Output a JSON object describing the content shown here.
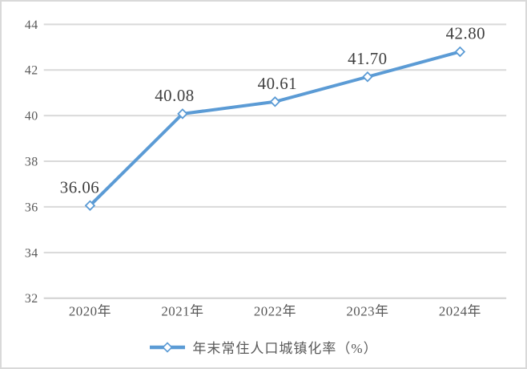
{
  "chart_data": {
    "type": "line",
    "title": "",
    "xlabel": "",
    "ylabel": "",
    "categories": [
      "2020年",
      "2021年",
      "2022年",
      "2023年",
      "2024年"
    ],
    "series": [
      {
        "name": "年末常住人口城镇化率（%）",
        "values": [
          36.06,
          40.08,
          40.61,
          41.7,
          42.8
        ],
        "data_labels": [
          "36.06",
          "40.08",
          "40.61",
          "41.70",
          "42.80"
        ]
      }
    ],
    "ylim": [
      32,
      44
    ],
    "ytick_interval": 2,
    "ytick_labels": [
      "32",
      "34",
      "36",
      "38",
      "40",
      "42",
      "44"
    ],
    "grid": "horizontal",
    "legend_position": "bottom",
    "marker_shape": "diamond",
    "colors": {
      "line": "#5b9bd5",
      "marker_fill": "#ffffff",
      "gridline": "#d9d9d9",
      "axis_line": "#d0d0d0",
      "tick_label": "#595959",
      "data_label": "#3f3f3f",
      "legend_label": "#595959",
      "frame_border": "#d9d9d9",
      "background": "#ffffff"
    }
  }
}
